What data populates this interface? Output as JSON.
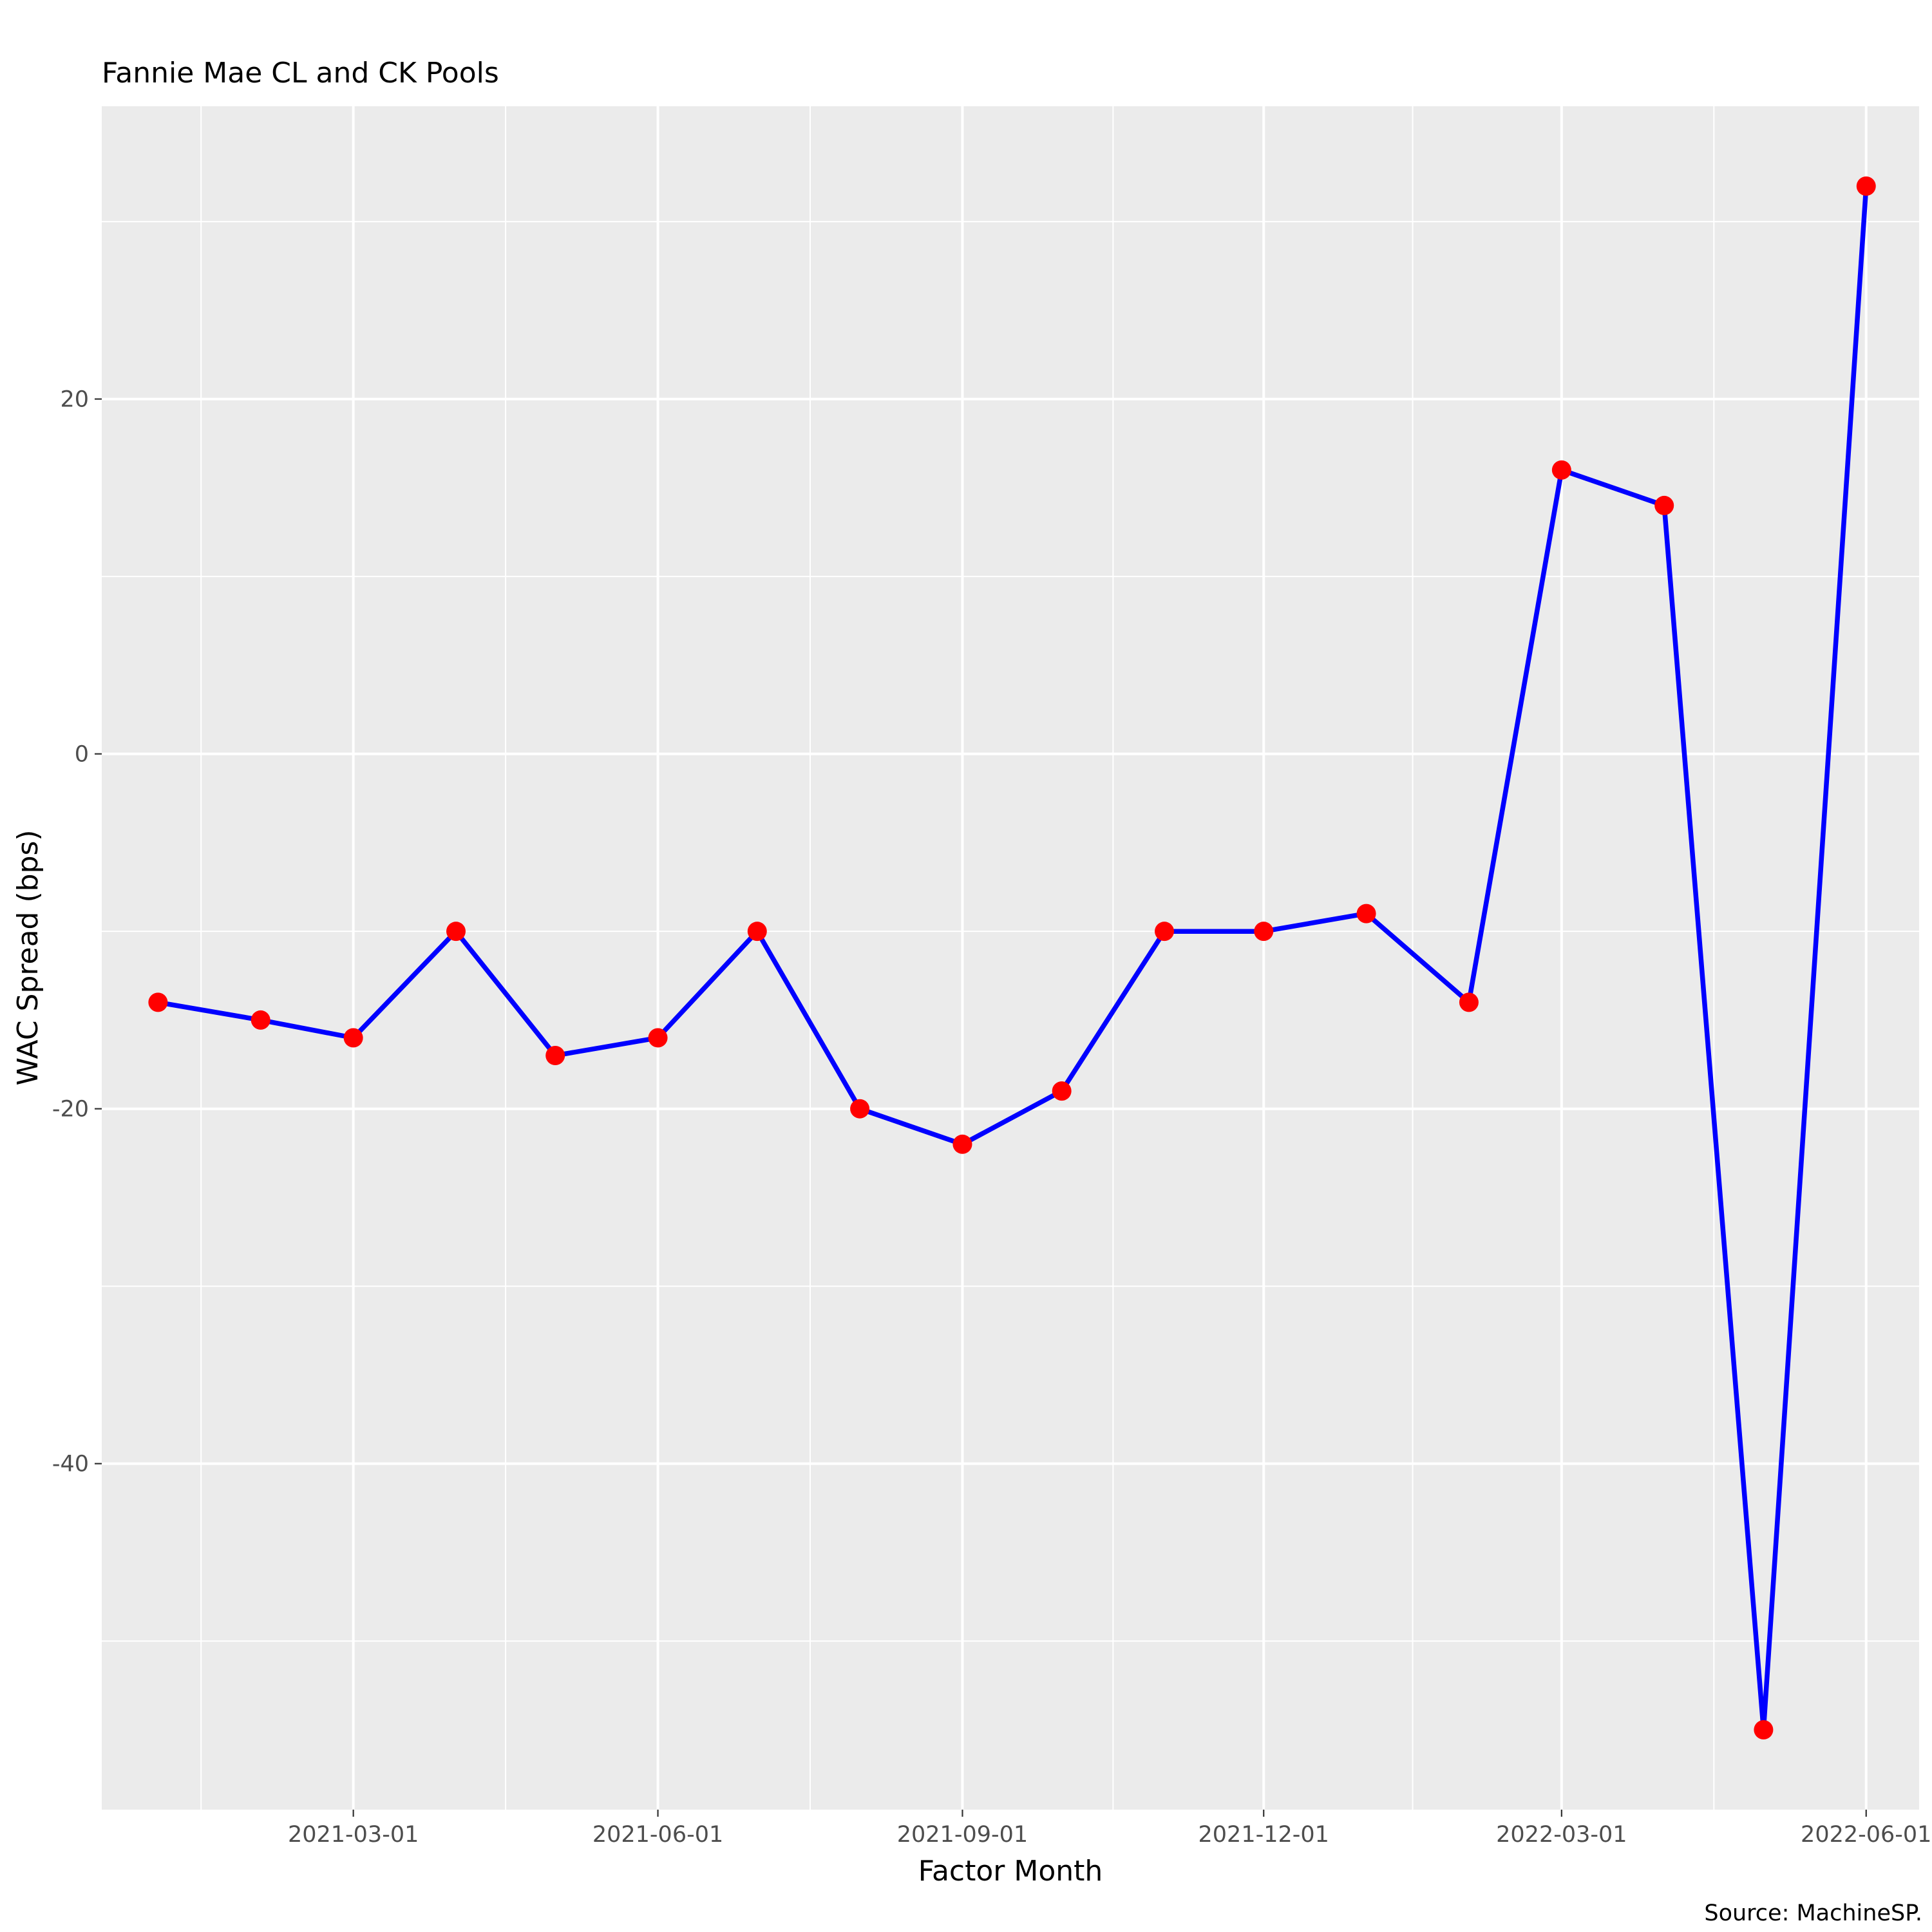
{
  "chart_data": {
    "type": "line",
    "title": "Fannie Mae CL and CK Pools",
    "xlabel": "Factor Month",
    "ylabel": "WAC Spread (bps)",
    "caption": "Source: MachineSP.",
    "x": [
      "2021-01-01",
      "2021-02-01",
      "2021-03-01",
      "2021-04-01",
      "2021-05-01",
      "2021-06-01",
      "2021-07-01",
      "2021-08-01",
      "2021-09-01",
      "2021-10-01",
      "2021-11-01",
      "2021-12-01",
      "2022-01-01",
      "2022-02-01",
      "2022-03-01",
      "2022-04-01",
      "2022-05-01",
      "2022-06-01"
    ],
    "series": [
      {
        "values": [
          -14,
          -15,
          -16,
          -10,
          -17,
          -16,
          -10,
          -20,
          -22,
          -19,
          -10,
          -10,
          -9,
          -14,
          16,
          14,
          -55,
          32
        ]
      }
    ],
    "xticks": [
      "2021-03-01",
      "2021-06-01",
      "2021-09-01",
      "2021-12-01",
      "2022-03-01",
      "2022-06-01"
    ],
    "yticks": [
      -40,
      -20,
      0,
      20
    ],
    "xlim": [
      "2020-12-15",
      "2022-06-17"
    ],
    "ylim": [
      -59.5,
      36.5
    ],
    "grid": true,
    "colors": {
      "line": "#0000ff",
      "points": "#ff0000",
      "panel": "#ebebeb",
      "grid": "#ffffff",
      "tick_text": "#4d4d4d",
      "tick_mark": "#333333"
    }
  }
}
